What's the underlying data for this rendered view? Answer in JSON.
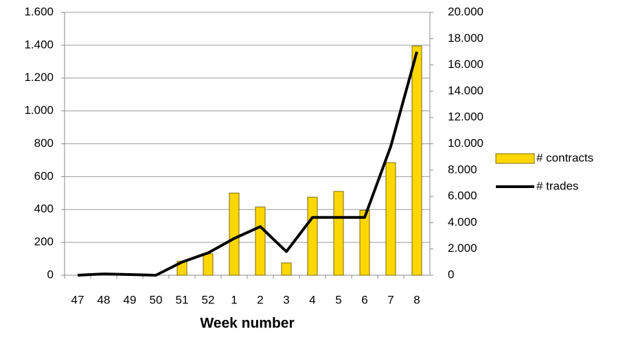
{
  "chart_data": {
    "type": "bar_line",
    "xlabel": "Week number",
    "categories": [
      "47",
      "48",
      "49",
      "50",
      "51",
      "52",
      "1",
      "2",
      "3",
      "4",
      "5",
      "6",
      "7",
      "8"
    ],
    "series": [
      {
        "name": "# contracts",
        "type": "bar",
        "axis": "y",
        "color": "#ffd700",
        "values": [
          0,
          0,
          0,
          0,
          85,
          130,
          500,
          415,
          75,
          475,
          510,
          395,
          685,
          1395
        ]
      },
      {
        "name": "# trades",
        "type": "line",
        "axis": "y2",
        "color": "#000000",
        "values": [
          0,
          100,
          50,
          0,
          1000,
          1700,
          2800,
          3700,
          1800,
          4400,
          4400,
          4400,
          9800,
          17000
        ]
      }
    ],
    "ylim": [
      0,
      1600
    ],
    "yticks": [
      0,
      200,
      400,
      600,
      800,
      {
        "value": 1000,
        "label": "1.000"
      },
      {
        "value": 1200,
        "label": "1.200"
      },
      {
        "value": 1400,
        "label": "1.400"
      },
      {
        "value": 1600,
        "label": "1.600"
      }
    ],
    "y2lim": [
      0,
      20000
    ],
    "y2ticks": [
      0,
      {
        "value": 2000,
        "label": "2.000"
      },
      {
        "value": 4000,
        "label": "4.000"
      },
      {
        "value": 6000,
        "label": "6.000"
      },
      {
        "value": 8000,
        "label": "8.000"
      },
      {
        "value": 10000,
        "label": "10.000"
      },
      {
        "value": 12000,
        "label": "12.000"
      },
      {
        "value": 14000,
        "label": "14.000"
      },
      {
        "value": 16000,
        "label": "16.000"
      },
      {
        "value": 18000,
        "label": "18.000"
      },
      {
        "value": 20000,
        "label": "20.000"
      }
    ],
    "grid": true,
    "legend": "right"
  }
}
